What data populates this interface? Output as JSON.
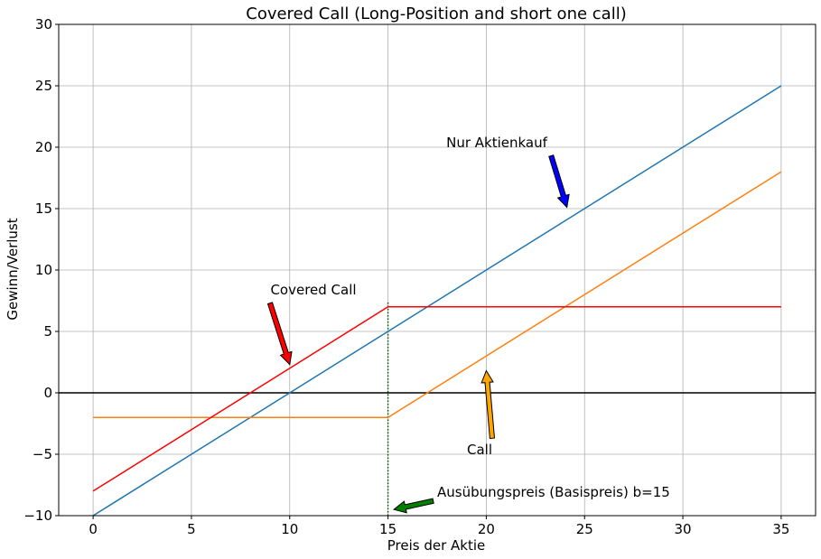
{
  "chart_data": {
    "type": "line",
    "title": "Covered Call (Long-Position and short one call)",
    "xlabel": "Preis der Aktie",
    "ylabel": "Gewinn/Verlust",
    "xlim": [
      -1.75,
      36.75
    ],
    "ylim": [
      -10,
      30
    ],
    "xticks": [
      0,
      5,
      10,
      15,
      20,
      25,
      30,
      35
    ],
    "yticks": [
      -10,
      -5,
      0,
      5,
      10,
      15,
      20,
      25,
      30
    ],
    "xtick_labels": [
      "0",
      "5",
      "10",
      "15",
      "20",
      "25",
      "30",
      "35"
    ],
    "ytick_labels": [
      "−10",
      "−5",
      "0",
      "5",
      "10",
      "15",
      "20",
      "25",
      "30"
    ],
    "grid": true,
    "series": [
      {
        "name": "Nur Aktienkauf",
        "color": "#1f77b4",
        "x": [
          0,
          35
        ],
        "y": [
          -10,
          25
        ]
      },
      {
        "name": "Call",
        "color": "#ff7f0e",
        "x": [
          0,
          15,
          35
        ],
        "y": [
          -2,
          -2,
          18
        ]
      },
      {
        "name": "Covered Call",
        "color": "#ff0000",
        "x": [
          0,
          15,
          35
        ],
        "y": [
          -8,
          7,
          7
        ]
      }
    ],
    "zero_line": {
      "y": 0,
      "color": "#000000"
    },
    "strike_line": {
      "x": 15,
      "y": [
        -10,
        7.5
      ],
      "color": "#006400"
    },
    "annotations": [
      {
        "text": "Nur Aktienkauf",
        "color": "#0000ff",
        "arrow_from": [
          23.3,
          19.3
        ],
        "arrow_to": [
          24.1,
          15.1
        ]
      },
      {
        "text": "Covered Call",
        "color": "#ff0000",
        "arrow_from": [
          9.0,
          7.3
        ],
        "arrow_to": [
          10.0,
          2.3
        ]
      },
      {
        "text": "Call",
        "color": "#ffa500",
        "arrow_from": [
          20.3,
          -3.7
        ],
        "arrow_to": [
          20.0,
          1.8
        ]
      },
      {
        "text": "Ausübungspreis (Basispreis) b=15",
        "color": "#008000",
        "arrow_from": [
          17.3,
          -8.8
        ],
        "arrow_to": [
          15.3,
          -9.5
        ]
      }
    ]
  }
}
